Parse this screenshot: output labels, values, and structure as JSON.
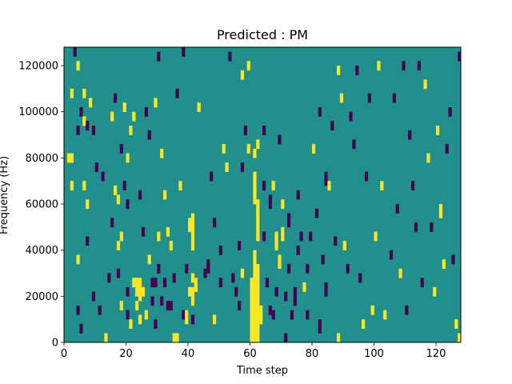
{
  "chart_data": {
    "type": "heatmap",
    "title": "Predicted : PM",
    "xlabel": "Time step",
    "ylabel": "Frequency (Hz)",
    "xlim": [
      0,
      128
    ],
    "ylim": [
      0,
      128000
    ],
    "x_ticks": [
      0,
      20,
      40,
      60,
      80,
      100,
      120
    ],
    "y_ticks": [
      0,
      20000,
      40000,
      60000,
      80000,
      100000,
      120000
    ],
    "x_tick_labels": [
      "0",
      "20",
      "40",
      "60",
      "80",
      "100",
      "120"
    ],
    "y_tick_labels": [
      "0",
      "20000",
      "40000",
      "60000",
      "80000",
      "100000",
      "120000"
    ],
    "n_time_steps": 128,
    "n_freq_bins": 64,
    "freq_bin_hz": 2000,
    "colors": {
      "background": "#21908c",
      "high": "#fde725",
      "low": "#440154"
    },
    "background_value": "mid",
    "cells": [
      {
        "t": 1,
        "f0": 78000,
        "f1": 82000,
        "v": "high"
      },
      {
        "t": 2,
        "f0": 78000,
        "f1": 82000,
        "v": "high"
      },
      {
        "t": 2,
        "f0": 66000,
        "f1": 70000,
        "v": "high"
      },
      {
        "t": 2,
        "f0": 106000,
        "f1": 110000,
        "v": "high"
      },
      {
        "t": 3,
        "f0": 124000,
        "f1": 128000,
        "v": "low"
      },
      {
        "t": 4,
        "f0": 118000,
        "f1": 122000,
        "v": "high"
      },
      {
        "t": 4,
        "f0": 90000,
        "f1": 94000,
        "v": "low"
      },
      {
        "t": 4,
        "f0": 12000,
        "f1": 16000,
        "v": "low"
      },
      {
        "t": 4,
        "f0": 34000,
        "f1": 38000,
        "v": "high"
      },
      {
        "t": 5,
        "f0": 98000,
        "f1": 102000,
        "v": "low"
      },
      {
        "t": 5,
        "f0": 4000,
        "f1": 8000,
        "v": "low"
      },
      {
        "t": 6,
        "f0": 106000,
        "f1": 110000,
        "v": "high"
      },
      {
        "t": 6,
        "f0": 94000,
        "f1": 98000,
        "v": "high"
      },
      {
        "t": 6,
        "f0": 66000,
        "f1": 70000,
        "v": "high"
      },
      {
        "t": 7,
        "f0": 58000,
        "f1": 62000,
        "v": "high"
      },
      {
        "t": 7,
        "f0": 42000,
        "f1": 46000,
        "v": "low"
      },
      {
        "t": 7,
        "f0": 92000,
        "f1": 96000,
        "v": "low"
      },
      {
        "t": 8,
        "f0": 102000,
        "f1": 106000,
        "v": "high"
      },
      {
        "t": 9,
        "f0": 90000,
        "f1": 94000,
        "v": "low"
      },
      {
        "t": 9,
        "f0": 18000,
        "f1": 22000,
        "v": "low"
      },
      {
        "t": 10,
        "f0": 74000,
        "f1": 78000,
        "v": "low"
      },
      {
        "t": 11,
        "f0": 12000,
        "f1": 16000,
        "v": "low"
      },
      {
        "t": 12,
        "f0": 70000,
        "f1": 74000,
        "v": "low"
      },
      {
        "t": 13,
        "f0": 0,
        "f1": 4000,
        "v": "high"
      },
      {
        "t": 14,
        "f0": 26000,
        "f1": 30000,
        "v": "low"
      },
      {
        "t": 15,
        "f0": 96000,
        "f1": 100000,
        "v": "high"
      },
      {
        "t": 15,
        "f0": 50000,
        "f1": 54000,
        "v": "low"
      },
      {
        "t": 16,
        "f0": 64000,
        "f1": 68000,
        "v": "high"
      },
      {
        "t": 16,
        "f0": 104000,
        "f1": 108000,
        "v": "low"
      },
      {
        "t": 17,
        "f0": 60000,
        "f1": 64000,
        "v": "high"
      },
      {
        "t": 17,
        "f0": 40000,
        "f1": 44000,
        "v": "high"
      },
      {
        "t": 17,
        "f0": 28000,
        "f1": 32000,
        "v": "low"
      },
      {
        "t": 18,
        "f0": 82000,
        "f1": 86000,
        "v": "low"
      },
      {
        "t": 18,
        "f0": 44000,
        "f1": 48000,
        "v": "high"
      },
      {
        "t": 18,
        "f0": 14000,
        "f1": 18000,
        "v": "high"
      },
      {
        "t": 19,
        "f0": 100000,
        "f1": 104000,
        "v": "high"
      },
      {
        "t": 19,
        "f0": 66000,
        "f1": 70000,
        "v": "low"
      },
      {
        "t": 20,
        "f0": 58000,
        "f1": 62000,
        "v": "low"
      },
      {
        "t": 20,
        "f0": 10000,
        "f1": 14000,
        "v": "low"
      },
      {
        "t": 20,
        "f0": 20000,
        "f1": 24000,
        "v": "low"
      },
      {
        "t": 20,
        "f0": 78000,
        "f1": 82000,
        "v": "high"
      },
      {
        "t": 21,
        "f0": 90000,
        "f1": 94000,
        "v": "high"
      },
      {
        "t": 21,
        "f0": 6000,
        "f1": 10000,
        "v": "high"
      },
      {
        "t": 22,
        "f0": 24000,
        "f1": 28000,
        "v": "high"
      },
      {
        "t": 22,
        "f0": 96000,
        "f1": 100000,
        "v": "high"
      },
      {
        "t": 23,
        "f0": 20000,
        "f1": 28000,
        "v": "high"
      },
      {
        "t": 23,
        "f0": 14000,
        "f1": 18000,
        "v": "high"
      },
      {
        "t": 24,
        "f0": 18000,
        "f1": 28000,
        "v": "high"
      },
      {
        "t": 24,
        "f0": 8000,
        "f1": 12000,
        "v": "high"
      },
      {
        "t": 24,
        "f0": 62000,
        "f1": 66000,
        "v": "low"
      },
      {
        "t": 25,
        "f0": 46000,
        "f1": 50000,
        "v": "low"
      },
      {
        "t": 25,
        "f0": 20000,
        "f1": 24000,
        "v": "high"
      },
      {
        "t": 26,
        "f0": 98000,
        "f1": 102000,
        "v": "low"
      },
      {
        "t": 26,
        "f0": 10000,
        "f1": 14000,
        "v": "high"
      },
      {
        "t": 27,
        "f0": 88000,
        "f1": 92000,
        "v": "low"
      },
      {
        "t": 27,
        "f0": 34000,
        "f1": 38000,
        "v": "high"
      },
      {
        "t": 28,
        "f0": 24000,
        "f1": 28000,
        "v": "low"
      },
      {
        "t": 28,
        "f0": 16000,
        "f1": 20000,
        "v": "low"
      },
      {
        "t": 29,
        "f0": 102000,
        "f1": 106000,
        "v": "high"
      },
      {
        "t": 29,
        "f0": 24000,
        "f1": 28000,
        "v": "low"
      },
      {
        "t": 29,
        "f0": 6000,
        "f1": 10000,
        "v": "low"
      },
      {
        "t": 30,
        "f0": 122000,
        "f1": 126000,
        "v": "low"
      },
      {
        "t": 30,
        "f0": 44000,
        "f1": 48000,
        "v": "high"
      },
      {
        "t": 30,
        "f0": 30000,
        "f1": 34000,
        "v": "low"
      },
      {
        "t": 31,
        "f0": 80000,
        "f1": 84000,
        "v": "high"
      },
      {
        "t": 31,
        "f0": 16000,
        "f1": 20000,
        "v": "low"
      },
      {
        "t": 32,
        "f0": 62000,
        "f1": 66000,
        "v": "high"
      },
      {
        "t": 32,
        "f0": 24000,
        "f1": 28000,
        "v": "low"
      },
      {
        "t": 33,
        "f0": 46000,
        "f1": 50000,
        "v": "high"
      },
      {
        "t": 33,
        "f0": 14000,
        "f1": 18000,
        "v": "low"
      },
      {
        "t": 34,
        "f0": 40000,
        "f1": 44000,
        "v": "high"
      },
      {
        "t": 34,
        "f0": 14000,
        "f1": 18000,
        "v": "low"
      },
      {
        "t": 35,
        "f0": 26000,
        "f1": 30000,
        "v": "low"
      },
      {
        "t": 35,
        "f0": 0,
        "f1": 4000,
        "v": "high"
      },
      {
        "t": 36,
        "f0": 106000,
        "f1": 110000,
        "v": "low"
      },
      {
        "t": 36,
        "f0": 0,
        "f1": 4000,
        "v": "high"
      },
      {
        "t": 37,
        "f0": 66000,
        "f1": 70000,
        "v": "high"
      },
      {
        "t": 38,
        "f0": 124000,
        "f1": 128000,
        "v": "low"
      },
      {
        "t": 38,
        "f0": 10000,
        "f1": 14000,
        "v": "low"
      },
      {
        "t": 39,
        "f0": 30000,
        "f1": 34000,
        "v": "low"
      },
      {
        "t": 39,
        "f0": 8000,
        "f1": 14000,
        "v": "high"
      },
      {
        "t": 40,
        "f0": 20000,
        "f1": 24000,
        "v": "high"
      },
      {
        "t": 40,
        "f0": 48000,
        "f1": 54000,
        "v": "high"
      },
      {
        "t": 41,
        "f0": 40000,
        "f1": 56000,
        "v": "high"
      },
      {
        "t": 41,
        "f0": 26000,
        "f1": 30000,
        "v": "high"
      },
      {
        "t": 41,
        "f0": 16000,
        "f1": 24000,
        "v": "high"
      },
      {
        "t": 41,
        "f0": 8000,
        "f1": 12000,
        "v": "low"
      },
      {
        "t": 42,
        "f0": 22000,
        "f1": 28000,
        "v": "high"
      },
      {
        "t": 43,
        "f0": 100000,
        "f1": 104000,
        "v": "high"
      },
      {
        "t": 45,
        "f0": 28000,
        "f1": 32000,
        "v": "low"
      },
      {
        "t": 46,
        "f0": 30000,
        "f1": 36000,
        "v": "low"
      },
      {
        "t": 47,
        "f0": 70000,
        "f1": 74000,
        "v": "low"
      },
      {
        "t": 48,
        "f0": 50000,
        "f1": 54000,
        "v": "low"
      },
      {
        "t": 48,
        "f0": 8000,
        "f1": 12000,
        "v": "high"
      },
      {
        "t": 50,
        "f0": 38000,
        "f1": 42000,
        "v": "low"
      },
      {
        "t": 50,
        "f0": 24000,
        "f1": 28000,
        "v": "low"
      },
      {
        "t": 51,
        "f0": 82000,
        "f1": 86000,
        "v": "high"
      },
      {
        "t": 52,
        "f0": 74000,
        "f1": 78000,
        "v": "high"
      },
      {
        "t": 53,
        "f0": 122000,
        "f1": 126000,
        "v": "low"
      },
      {
        "t": 54,
        "f0": 26000,
        "f1": 30000,
        "v": "low"
      },
      {
        "t": 55,
        "f0": 20000,
        "f1": 24000,
        "v": "low"
      },
      {
        "t": 56,
        "f0": 40000,
        "f1": 44000,
        "v": "low"
      },
      {
        "t": 56,
        "f0": 14000,
        "f1": 18000,
        "v": "low"
      },
      {
        "t": 57,
        "f0": 114000,
        "f1": 118000,
        "v": "high"
      },
      {
        "t": 57,
        "f0": 74000,
        "f1": 78000,
        "v": "low"
      },
      {
        "t": 57,
        "f0": 28000,
        "f1": 32000,
        "v": "high"
      },
      {
        "t": 58,
        "f0": 90000,
        "f1": 94000,
        "v": "low"
      },
      {
        "t": 59,
        "f0": 118000,
        "f1": 122000,
        "v": "high"
      },
      {
        "t": 59,
        "f0": 82000,
        "f1": 86000,
        "v": "high"
      },
      {
        "t": 60,
        "f0": 0,
        "f1": 28000,
        "v": "high"
      },
      {
        "t": 60,
        "f0": 10000,
        "f1": 14000,
        "v": "high"
      },
      {
        "t": 61,
        "f0": 0,
        "f1": 40000,
        "v": "high"
      },
      {
        "t": 61,
        "f0": 60000,
        "f1": 74000,
        "v": "high"
      },
      {
        "t": 61,
        "f0": 80000,
        "f1": 84000,
        "v": "high"
      },
      {
        "t": 62,
        "f0": 0,
        "f1": 34000,
        "v": "high"
      },
      {
        "t": 62,
        "f0": 44000,
        "f1": 62000,
        "v": "high"
      },
      {
        "t": 62,
        "f0": 84000,
        "f1": 88000,
        "v": "high"
      },
      {
        "t": 63,
        "f0": 8000,
        "f1": 16000,
        "v": "high"
      },
      {
        "t": 64,
        "f0": 90000,
        "f1": 94000,
        "v": "low"
      },
      {
        "t": 64,
        "f0": 44000,
        "f1": 48000,
        "v": "low"
      },
      {
        "t": 64,
        "f0": 66000,
        "f1": 70000,
        "v": "low"
      },
      {
        "t": 65,
        "f0": 24000,
        "f1": 28000,
        "v": "low"
      },
      {
        "t": 66,
        "f0": 58000,
        "f1": 64000,
        "v": "low"
      },
      {
        "t": 66,
        "f0": 12000,
        "f1": 16000,
        "v": "low"
      },
      {
        "t": 67,
        "f0": 66000,
        "f1": 70000,
        "v": "high"
      },
      {
        "t": 67,
        "f0": 10000,
        "f1": 14000,
        "v": "low"
      },
      {
        "t": 68,
        "f0": 40000,
        "f1": 48000,
        "v": "high"
      },
      {
        "t": 68,
        "f0": 20000,
        "f1": 24000,
        "v": "low"
      },
      {
        "t": 69,
        "f0": 32000,
        "f1": 38000,
        "v": "high"
      },
      {
        "t": 69,
        "f0": 86000,
        "f1": 90000,
        "v": "low"
      },
      {
        "t": 70,
        "f0": 44000,
        "f1": 50000,
        "v": "high"
      },
      {
        "t": 70,
        "f0": 58000,
        "f1": 62000,
        "v": "high"
      },
      {
        "t": 71,
        "f0": 0,
        "f1": 4000,
        "v": "low"
      },
      {
        "t": 71,
        "f0": 18000,
        "f1": 22000,
        "v": "low"
      },
      {
        "t": 72,
        "f0": 30000,
        "f1": 34000,
        "v": "low"
      },
      {
        "t": 72,
        "f0": 50000,
        "f1": 56000,
        "v": "low"
      },
      {
        "t": 73,
        "f0": 10000,
        "f1": 14000,
        "v": "low"
      },
      {
        "t": 74,
        "f0": 16000,
        "f1": 24000,
        "v": "low"
      },
      {
        "t": 75,
        "f0": 62000,
        "f1": 66000,
        "v": "low"
      },
      {
        "t": 75,
        "f0": 38000,
        "f1": 42000,
        "v": "low"
      },
      {
        "t": 76,
        "f0": 44000,
        "f1": 48000,
        "v": "low"
      },
      {
        "t": 77,
        "f0": 22000,
        "f1": 26000,
        "v": "high"
      },
      {
        "t": 78,
        "f0": 10000,
        "f1": 14000,
        "v": "low"
      },
      {
        "t": 78,
        "f0": 30000,
        "f1": 34000,
        "v": "low"
      },
      {
        "t": 79,
        "f0": 44000,
        "f1": 48000,
        "v": "low"
      },
      {
        "t": 80,
        "f0": 82000,
        "f1": 86000,
        "v": "high"
      },
      {
        "t": 81,
        "f0": 54000,
        "f1": 58000,
        "v": "low"
      },
      {
        "t": 82,
        "f0": 98000,
        "f1": 102000,
        "v": "low"
      },
      {
        "t": 82,
        "f0": 4000,
        "f1": 10000,
        "v": "low"
      },
      {
        "t": 83,
        "f0": 34000,
        "f1": 38000,
        "v": "low"
      },
      {
        "t": 84,
        "f0": 68000,
        "f1": 74000,
        "v": "low"
      },
      {
        "t": 84,
        "f0": 20000,
        "f1": 26000,
        "v": "low"
      },
      {
        "t": 85,
        "f0": 66000,
        "f1": 70000,
        "v": "high"
      },
      {
        "t": 86,
        "f0": 92000,
        "f1": 96000,
        "v": "low"
      },
      {
        "t": 87,
        "f0": 42000,
        "f1": 46000,
        "v": "low"
      },
      {
        "t": 88,
        "f0": 116000,
        "f1": 120000,
        "v": "high"
      },
      {
        "t": 88,
        "f0": 0,
        "f1": 4000,
        "v": "high"
      },
      {
        "t": 89,
        "f0": 104000,
        "f1": 108000,
        "v": "high"
      },
      {
        "t": 90,
        "f0": 40000,
        "f1": 44000,
        "v": "high"
      },
      {
        "t": 91,
        "f0": 30000,
        "f1": 34000,
        "v": "low"
      },
      {
        "t": 92,
        "f0": 96000,
        "f1": 100000,
        "v": "low"
      },
      {
        "t": 93,
        "f0": 84000,
        "f1": 88000,
        "v": "low"
      },
      {
        "t": 94,
        "f0": 116000,
        "f1": 120000,
        "v": "low"
      },
      {
        "t": 95,
        "f0": 26000,
        "f1": 30000,
        "v": "low"
      },
      {
        "t": 96,
        "f0": 6000,
        "f1": 10000,
        "v": "high"
      },
      {
        "t": 97,
        "f0": 70000,
        "f1": 74000,
        "v": "low"
      },
      {
        "t": 98,
        "f0": 104000,
        "f1": 108000,
        "v": "low"
      },
      {
        "t": 99,
        "f0": 12000,
        "f1": 16000,
        "v": "high"
      },
      {
        "t": 100,
        "f0": 44000,
        "f1": 48000,
        "v": "high"
      },
      {
        "t": 101,
        "f0": 118000,
        "f1": 122000,
        "v": "high"
      },
      {
        "t": 102,
        "f0": 66000,
        "f1": 70000,
        "v": "high"
      },
      {
        "t": 103,
        "f0": 10000,
        "f1": 14000,
        "v": "high"
      },
      {
        "t": 105,
        "f0": 36000,
        "f1": 40000,
        "v": "low"
      },
      {
        "t": 106,
        "f0": 104000,
        "f1": 108000,
        "v": "low"
      },
      {
        "t": 107,
        "f0": 56000,
        "f1": 60000,
        "v": "low"
      },
      {
        "t": 108,
        "f0": 28000,
        "f1": 32000,
        "v": "high"
      },
      {
        "t": 109,
        "f0": 118000,
        "f1": 122000,
        "v": "low"
      },
      {
        "t": 110,
        "f0": 12000,
        "f1": 16000,
        "v": "low"
      },
      {
        "t": 111,
        "f0": 88000,
        "f1": 92000,
        "v": "low"
      },
      {
        "t": 112,
        "f0": 66000,
        "f1": 70000,
        "v": "low"
      },
      {
        "t": 113,
        "f0": 48000,
        "f1": 52000,
        "v": "low"
      },
      {
        "t": 114,
        "f0": 118000,
        "f1": 122000,
        "v": "low"
      },
      {
        "t": 115,
        "f0": 24000,
        "f1": 28000,
        "v": "low"
      },
      {
        "t": 116,
        "f0": 110000,
        "f1": 114000,
        "v": "high"
      },
      {
        "t": 117,
        "f0": 78000,
        "f1": 82000,
        "v": "high"
      },
      {
        "t": 118,
        "f0": 48000,
        "f1": 52000,
        "v": "low"
      },
      {
        "t": 119,
        "f0": 20000,
        "f1": 24000,
        "v": "high"
      },
      {
        "t": 120,
        "f0": 90000,
        "f1": 94000,
        "v": "high"
      },
      {
        "t": 121,
        "f0": 54000,
        "f1": 60000,
        "v": "high"
      },
      {
        "t": 122,
        "f0": 32000,
        "f1": 36000,
        "v": "high"
      },
      {
        "t": 123,
        "f0": 82000,
        "f1": 86000,
        "v": "low"
      },
      {
        "t": 124,
        "f0": 98000,
        "f1": 102000,
        "v": "low"
      },
      {
        "t": 125,
        "f0": 34000,
        "f1": 38000,
        "v": "low"
      },
      {
        "t": 126,
        "f0": 6000,
        "f1": 10000,
        "v": "high"
      },
      {
        "t": 127,
        "f0": 122000,
        "f1": 126000,
        "v": "low"
      },
      {
        "t": 127,
        "f0": 0,
        "f1": 4000,
        "v": "high"
      }
    ]
  }
}
